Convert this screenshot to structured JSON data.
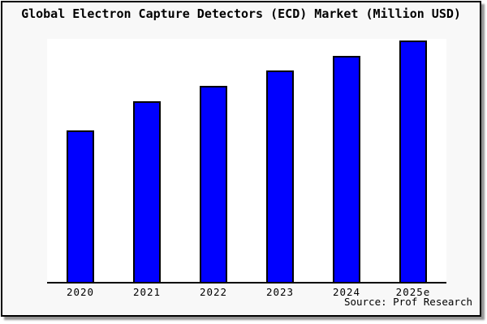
{
  "title": "Global Electron Capture Detectors (ECD) Market (Million USD)",
  "source_note": "Source: Prof Research",
  "colors": {
    "bar_fill": "#0000ff",
    "bar_border": "#000000",
    "figure_background": "#f8f8f8",
    "plot_background": "#ffffff",
    "frame_border": "#000000",
    "frame_shadow": "#949494",
    "axis_line": "#000000",
    "text": "#000000"
  },
  "chart_data": {
    "type": "bar",
    "title": "Global Electron Capture Detectors (ECD) Market (Million USD)",
    "categories": [
      "2020",
      "2021",
      "2022",
      "2023",
      "2024",
      "2025e"
    ],
    "values": [
      188,
      225,
      244,
      263,
      281,
      300
    ],
    "values_relative_to_max": [
      0.63,
      0.75,
      0.81,
      0.88,
      0.94,
      1.0
    ],
    "note": "Y-axis has no tick labels or gridlines in the image; values are estimated relative magnitudes (pixel-measured bar heights).",
    "xlabel": "",
    "ylabel": "",
    "ylim": [
      0,
      302
    ],
    "grid": false,
    "legend": false,
    "y_axis_ticks_visible": false,
    "x_axis_line_visible": true,
    "legend_position": "none"
  }
}
